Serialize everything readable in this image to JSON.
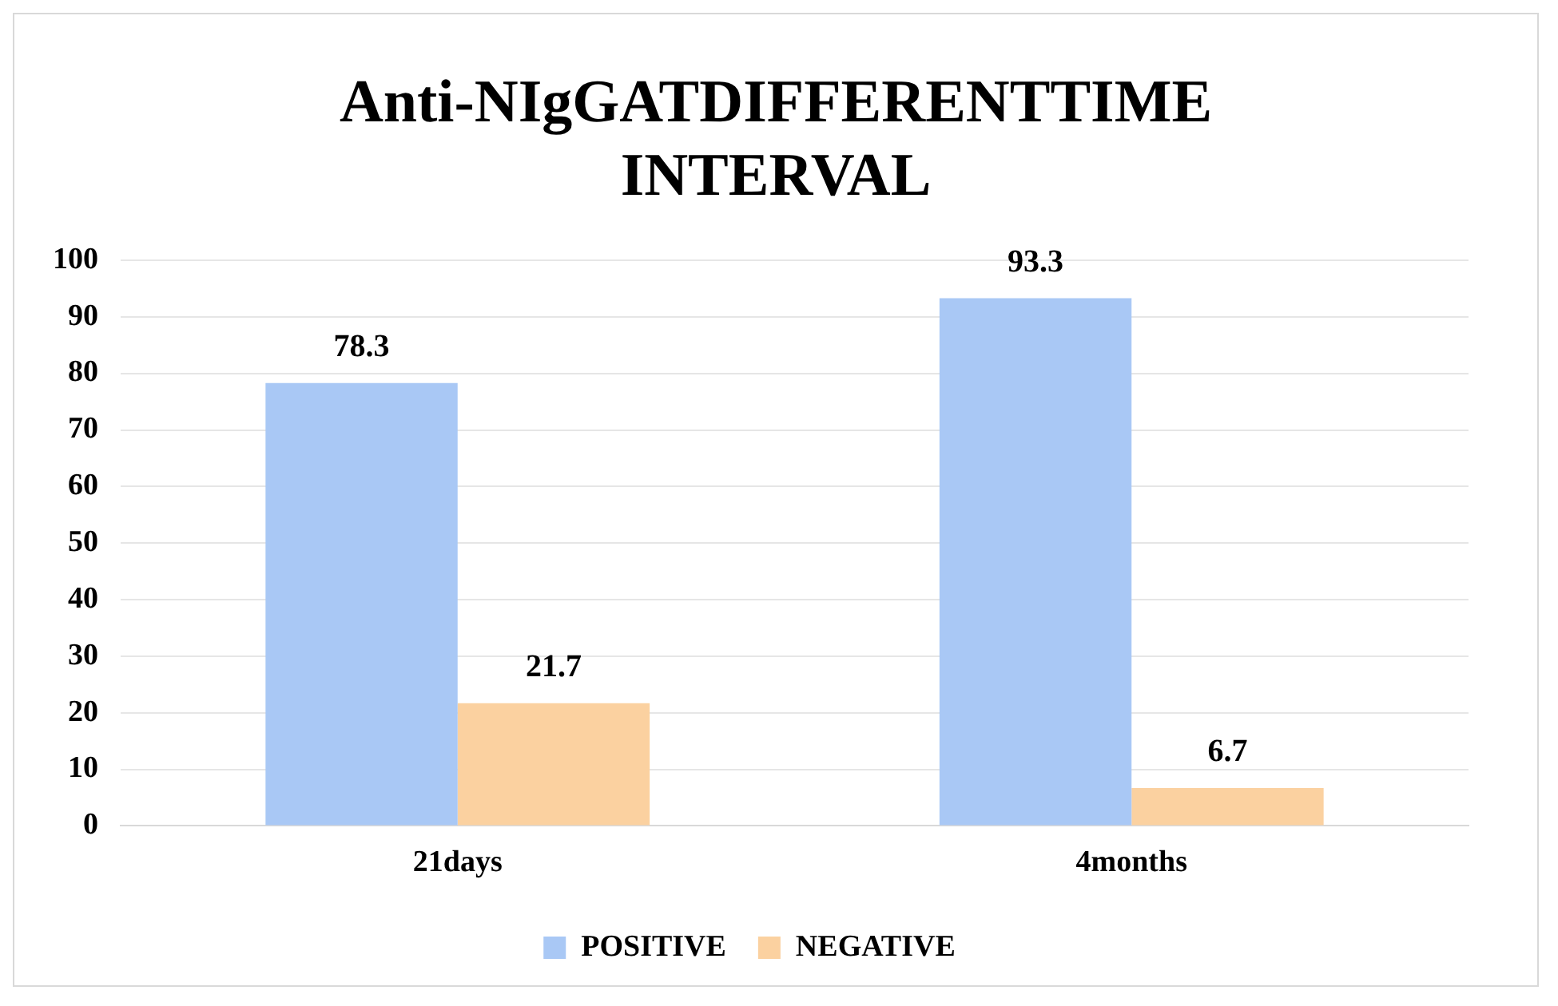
{
  "chart_data": {
    "type": "bar",
    "title": "Anti-NIgGATDIFFERENTTIME INTERVAL",
    "categories": [
      "21days",
      "4months"
    ],
    "series": [
      {
        "name": "POSITIVE",
        "color": "#a9c8f5",
        "values": [
          78.3,
          93.3
        ]
      },
      {
        "name": "NEGATIVE",
        "color": "#fbd1a0",
        "values": [
          21.7,
          6.7
        ]
      }
    ],
    "ylim": [
      0,
      100
    ],
    "yticks": [
      0,
      10,
      20,
      30,
      40,
      50,
      60,
      70,
      80,
      90,
      100
    ],
    "grid": "y",
    "legend": "bottom",
    "data_labels": true
  }
}
